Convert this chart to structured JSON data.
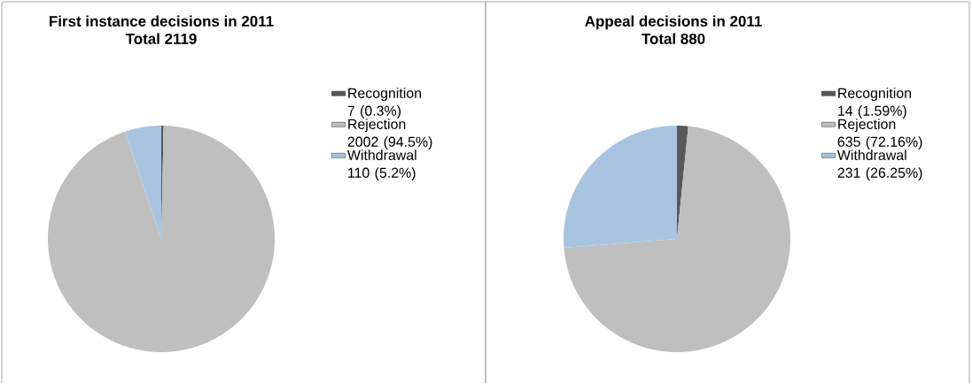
{
  "chart_data": [
    {
      "type": "pie",
      "title": "First instance decisions in 2011",
      "subtitle": "Total 2119",
      "categories": [
        "Recognition",
        "Rejection",
        "Withdrawal"
      ],
      "values": [
        7,
        2002,
        110
      ],
      "colors": [
        "#595959",
        "#bfbfbf",
        "#a9c4e0"
      ],
      "value_labels": [
        "7 (0.3%)",
        "2002 (94.5%)",
        "110 (5.2%)"
      ],
      "legend": "right"
    },
    {
      "type": "pie",
      "title": "Appeal decisions in 2011",
      "subtitle": "Total 880",
      "categories": [
        "Recognition",
        "Rejection",
        "Withdrawal"
      ],
      "values": [
        14,
        635,
        231
      ],
      "colors": [
        "#595959",
        "#bfbfbf",
        "#a9c4e0"
      ],
      "value_labels": [
        "14 (1.59%)",
        "635 (72.16%)",
        "231 (26.25%)"
      ],
      "legend": "right"
    }
  ]
}
